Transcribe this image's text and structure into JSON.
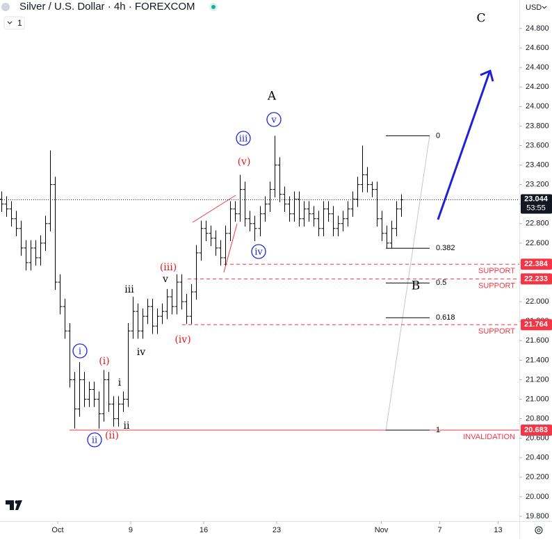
{
  "chart_data": {
    "type": "ohlc",
    "title": "Silver / U.S. Dollar · 4h · FOREXCOM",
    "indicator_count": 1,
    "currency": "USD",
    "color": "#000000",
    "xlim": [
      -23.714,
      189.714
    ],
    "xticks": [
      {
        "value": 0,
        "label": "Oct"
      },
      {
        "value": 30,
        "label": "9"
      },
      {
        "value": 60,
        "label": "16"
      },
      {
        "value": 90,
        "label": "23"
      },
      {
        "value": 133,
        "label": "Nov"
      },
      {
        "value": 157,
        "label": "7"
      },
      {
        "value": 181,
        "label": "13"
      }
    ],
    "ylim": [
      19.75,
      25.092
    ],
    "yticks": [
      {
        "value": 19.8,
        "label": "19.800"
      },
      {
        "value": 20,
        "label": "20.000"
      },
      {
        "value": 20.2,
        "label": "20.200"
      },
      {
        "value": 20.4,
        "label": "20.400"
      },
      {
        "value": 20.6,
        "label": "20.600"
      },
      {
        "value": 20.8,
        "label": "20.800"
      },
      {
        "value": 21,
        "label": "21.000"
      },
      {
        "value": 21.2,
        "label": "21.200"
      },
      {
        "value": 21.4,
        "label": "21.400"
      },
      {
        "value": 21.6,
        "label": "21.600"
      },
      {
        "value": 21.8,
        "label": "21.800"
      },
      {
        "value": 22,
        "label": "22.000"
      },
      {
        "value": 22.2,
        "label": "22.200"
      },
      {
        "value": 22.4,
        "label": "22.400"
      },
      {
        "value": 22.6,
        "label": "22.600"
      },
      {
        "value": 22.8,
        "label": "22.800"
      },
      {
        "value": 23,
        "label": "23.000"
      },
      {
        "value": 23.2,
        "label": "23.200"
      },
      {
        "value": 23.4,
        "label": "23.400"
      },
      {
        "value": 23.6,
        "label": "23.600"
      },
      {
        "value": 23.8,
        "label": "23.800"
      },
      {
        "value": 24,
        "label": "24.000"
      },
      {
        "value": 24.2,
        "label": "24.200"
      },
      {
        "value": 24.4,
        "label": "24.400"
      },
      {
        "value": 24.6,
        "label": "24.600"
      },
      {
        "value": 24.8,
        "label": "24.800"
      }
    ],
    "series": {
      "x": [
        -23,
        -21,
        -19,
        -17,
        -15,
        -13,
        -11,
        -9,
        -7,
        -5,
        -3,
        -1,
        1,
        3,
        5,
        7,
        9,
        11,
        13,
        15,
        17,
        19,
        21,
        23,
        25,
        27,
        29,
        31,
        33,
        35,
        37,
        39,
        41,
        43,
        45,
        47,
        49,
        51,
        53,
        55,
        57,
        59,
        61,
        63,
        65,
        67,
        69,
        71,
        73,
        75,
        77,
        79,
        81,
        83,
        85,
        87,
        89,
        91,
        93,
        95,
        97,
        99,
        101,
        103,
        105,
        107,
        109,
        111,
        113,
        115,
        117,
        119,
        121,
        123,
        125,
        127,
        129,
        131,
        133,
        135,
        137,
        139,
        141
      ],
      "open": [
        23.05,
        23.0,
        22.95,
        22.85,
        22.75,
        22.55,
        22.4,
        22.55,
        22.45,
        22.6,
        22.8,
        23.2,
        22.2,
        21.95,
        21.7,
        21.2,
        20.9,
        21.2,
        21.0,
        21.1,
        21.0,
        20.85,
        21.2,
        20.95,
        20.8,
        20.95,
        21.0,
        21.7,
        21.9,
        21.7,
        21.85,
        21.95,
        21.75,
        21.85,
        21.9,
        22.05,
        21.95,
        22.2,
        22.0,
        21.85,
        22.1,
        22.5,
        22.75,
        22.7,
        22.65,
        22.55,
        22.45,
        22.7,
        22.95,
        22.9,
        23.15,
        22.85,
        22.8,
        22.75,
        22.9,
        23.0,
        23.15,
        23.4,
        23.1,
        23.0,
        22.9,
        23.05,
        22.85,
        22.95,
        22.9,
        22.85,
        22.75,
        22.95,
        22.9,
        22.75,
        22.8,
        22.85,
        22.95,
        23.05,
        23.2,
        23.3,
        23.2,
        23.15,
        22.85,
        22.7,
        22.6,
        22.75,
        22.95
      ],
      "high": [
        23.13,
        23.08,
        23.03,
        22.93,
        22.83,
        22.63,
        22.63,
        22.63,
        22.68,
        22.88,
        23.55,
        23.28,
        22.28,
        22.03,
        21.78,
        21.28,
        21.38,
        21.28,
        21.18,
        21.18,
        21.08,
        21.3,
        21.28,
        21.03,
        21.03,
        21.08,
        21.78,
        22.05,
        21.98,
        21.93,
        22.03,
        22.03,
        21.93,
        21.98,
        22.13,
        22.13,
        22.28,
        22.28,
        22.08,
        22.18,
        22.58,
        22.83,
        22.83,
        22.78,
        22.73,
        22.63,
        22.78,
        23.03,
        23.03,
        23.3,
        23.23,
        22.93,
        22.88,
        22.98,
        23.08,
        23.23,
        23.7,
        23.48,
        23.18,
        23.08,
        23.13,
        23.13,
        23.03,
        23.03,
        22.98,
        22.93,
        23.03,
        23.03,
        22.98,
        22.88,
        22.93,
        23.03,
        23.13,
        23.28,
        23.6,
        23.38,
        23.23,
        23.23,
        22.93,
        22.78,
        22.83,
        23.03,
        23.1
      ],
      "low": [
        22.92,
        22.87,
        22.77,
        22.67,
        22.47,
        22.32,
        22.32,
        22.37,
        22.37,
        22.52,
        22.72,
        22.12,
        21.87,
        21.62,
        21.12,
        20.7,
        20.82,
        20.92,
        20.92,
        20.92,
        20.7,
        20.77,
        20.87,
        20.72,
        20.72,
        20.87,
        20.92,
        21.62,
        21.62,
        21.62,
        21.77,
        21.67,
        21.67,
        21.77,
        21.82,
        21.87,
        21.87,
        21.92,
        21.77,
        21.77,
        22.02,
        22.42,
        22.62,
        22.57,
        22.47,
        22.37,
        22.37,
        22.62,
        22.82,
        22.82,
        22.77,
        22.72,
        22.62,
        22.67,
        22.82,
        22.92,
        23.07,
        23.02,
        22.92,
        22.82,
        22.82,
        22.77,
        22.77,
        22.82,
        22.77,
        22.67,
        22.67,
        22.82,
        22.67,
        22.67,
        22.72,
        22.77,
        22.87,
        22.97,
        23.12,
        23.12,
        23.07,
        22.77,
        22.62,
        22.55,
        22.55,
        22.67,
        22.87
      ],
      "close": [
        23.0,
        22.95,
        22.85,
        22.75,
        22.55,
        22.4,
        22.55,
        22.45,
        22.6,
        22.8,
        23.2,
        22.2,
        21.95,
        21.7,
        21.2,
        20.9,
        21.2,
        21.0,
        21.1,
        21.0,
        20.85,
        21.2,
        20.95,
        20.8,
        20.95,
        21.0,
        21.7,
        21.9,
        21.7,
        21.85,
        21.95,
        21.75,
        21.85,
        21.9,
        22.05,
        21.95,
        22.2,
        22.0,
        21.85,
        22.1,
        22.5,
        22.75,
        22.7,
        22.65,
        22.55,
        22.45,
        22.7,
        22.95,
        22.9,
        23.15,
        22.85,
        22.8,
        22.75,
        22.9,
        23.0,
        23.15,
        23.4,
        23.1,
        23.0,
        22.9,
        23.05,
        22.85,
        22.95,
        22.9,
        22.85,
        22.75,
        22.95,
        22.9,
        22.75,
        22.8,
        22.85,
        22.95,
        23.05,
        23.2,
        23.3,
        23.2,
        23.15,
        22.85,
        22.7,
        22.6,
        22.75,
        22.95,
        23.044
      ]
    },
    "last": {
      "price": 23.044,
      "countdown": "53:55"
    },
    "levels": [
      {
        "price": 22.384,
        "text": "SUPPORT"
      },
      {
        "price": 22.233,
        "text": "SUPPORT"
      },
      {
        "price": 21.764,
        "text": "SUPPORT"
      },
      {
        "price": 20.683,
        "text": "INVALIDATION"
      }
    ],
    "fib": {
      "high": 23.7,
      "low": 20.683,
      "levels": [
        0,
        0.382,
        0.5,
        0.618,
        1
      ]
    },
    "waves": [
      {
        "text": "i"
      },
      {
        "text": "ii"
      },
      {
        "text": "iii"
      },
      {
        "text": "iv"
      },
      {
        "text": "v"
      },
      {
        "text": "(i)"
      },
      {
        "text": "(ii)"
      },
      {
        "text": "(iii)"
      },
      {
        "text": "(iv)"
      },
      {
        "text": "(v)"
      },
      {
        "text": "A"
      },
      {
        "text": "B"
      },
      {
        "text": "C"
      },
      {
        "text": "iii"
      },
      {
        "text": "v"
      },
      {
        "text": "iv"
      },
      {
        "text": "i"
      },
      {
        "text": "ii"
      }
    ]
  }
}
